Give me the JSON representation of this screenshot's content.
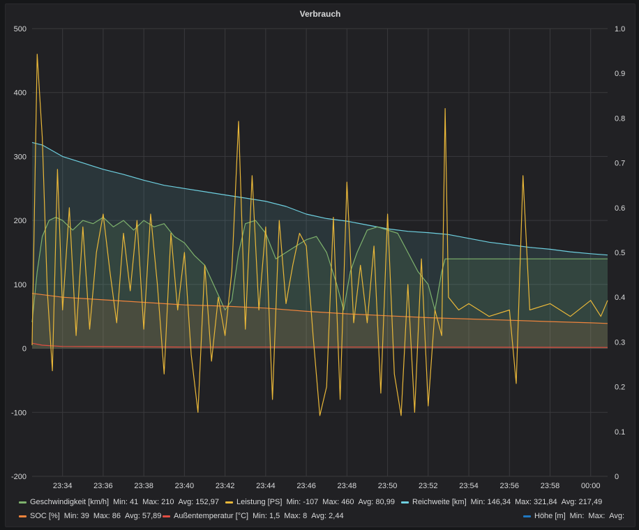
{
  "panel": {
    "title": "Verbrauch"
  },
  "chart_data": {
    "type": "line",
    "title": "Verbrauch",
    "x_tick_labels": [
      "23:34",
      "23:36",
      "23:38",
      "23:40",
      "23:42",
      "23:44",
      "23:46",
      "23:48",
      "23:50",
      "23:52",
      "23:54",
      "23:56",
      "23:58",
      "00:00"
    ],
    "x_range_minutes": [
      "23:32:30",
      "00:00:50"
    ],
    "y_left": {
      "range": [
        -200,
        500
      ],
      "ticks": [
        "500",
        "400",
        "300",
        "200",
        "100",
        "0",
        "-100",
        "-200"
      ]
    },
    "y_right": {
      "range": [
        0,
        1.0
      ],
      "ticks": [
        "1.0",
        "0.9",
        "0.8",
        "0.7",
        "0.6",
        "0.5",
        "0.4",
        "0.3",
        "0.2",
        "0.1",
        "0"
      ]
    },
    "grid": true,
    "legend_placement": "bottom",
    "series": [
      {
        "name": "Geschwindigkeit [km/h]",
        "color": "#7eb26d",
        "fill": true,
        "stats": {
          "min": "41",
          "max": "210",
          "avg": "152,97"
        },
        "points": [
          [
            "23:32:30",
            41
          ],
          [
            "23:32:45",
            120
          ],
          [
            "23:33:00",
            175
          ],
          [
            "23:33:20",
            200
          ],
          [
            "23:33:40",
            205
          ],
          [
            "23:34:00",
            200
          ],
          [
            "23:34:30",
            185
          ],
          [
            "23:35:00",
            200
          ],
          [
            "23:35:30",
            195
          ],
          [
            "23:36:00",
            205
          ],
          [
            "23:36:30",
            190
          ],
          [
            "23:37:00",
            200
          ],
          [
            "23:37:30",
            185
          ],
          [
            "23:38:00",
            200
          ],
          [
            "23:38:30",
            190
          ],
          [
            "23:39:00",
            195
          ],
          [
            "23:39:30",
            175
          ],
          [
            "23:40:00",
            165
          ],
          [
            "23:40:30",
            145
          ],
          [
            "23:41:00",
            130
          ],
          [
            "23:41:30",
            95
          ],
          [
            "23:42:00",
            60
          ],
          [
            "23:42:20",
            75
          ],
          [
            "23:42:40",
            150
          ],
          [
            "23:43:00",
            195
          ],
          [
            "23:43:30",
            200
          ],
          [
            "23:44:00",
            180
          ],
          [
            "23:44:30",
            140
          ],
          [
            "23:45:00",
            150
          ],
          [
            "23:45:30",
            160
          ],
          [
            "23:46:00",
            170
          ],
          [
            "23:46:30",
            175
          ],
          [
            "23:47:00",
            150
          ],
          [
            "23:47:30",
            100
          ],
          [
            "23:47:50",
            60
          ],
          [
            "23:48:10",
            120
          ],
          [
            "23:48:30",
            150
          ],
          [
            "23:49:00",
            185
          ],
          [
            "23:49:30",
            190
          ],
          [
            "23:50:00",
            185
          ],
          [
            "23:50:30",
            180
          ],
          [
            "23:51:00",
            150
          ],
          [
            "23:51:30",
            120
          ],
          [
            "23:52:00",
            100
          ],
          [
            "23:52:20",
            60
          ],
          [
            "23:52:40",
            120
          ],
          [
            "23:52:50",
            140
          ],
          [
            "23:55:00",
            140
          ],
          [
            "23:58:00",
            140
          ],
          [
            "00:00:50",
            140
          ]
        ]
      },
      {
        "name": "Leistung [PS]",
        "color": "#eab839",
        "fill": false,
        "stats": {
          "min": "-107",
          "max": "460",
          "avg": "80,99"
        },
        "points": [
          [
            "23:32:30",
            5
          ],
          [
            "23:32:45",
            460
          ],
          [
            "23:33:00",
            330
          ],
          [
            "23:33:15",
            90
          ],
          [
            "23:33:30",
            -35
          ],
          [
            "23:33:45",
            280
          ],
          [
            "23:34:00",
            60
          ],
          [
            "23:34:20",
            220
          ],
          [
            "23:34:40",
            20
          ],
          [
            "23:35:00",
            190
          ],
          [
            "23:35:20",
            30
          ],
          [
            "23:35:40",
            150
          ],
          [
            "23:36:00",
            210
          ],
          [
            "23:36:20",
            120
          ],
          [
            "23:36:40",
            40
          ],
          [
            "23:37:00",
            180
          ],
          [
            "23:37:20",
            90
          ],
          [
            "23:37:40",
            200
          ],
          [
            "23:38:00",
            30
          ],
          [
            "23:38:20",
            210
          ],
          [
            "23:38:40",
            100
          ],
          [
            "23:39:00",
            -40
          ],
          [
            "23:39:20",
            180
          ],
          [
            "23:39:40",
            60
          ],
          [
            "23:40:00",
            150
          ],
          [
            "23:40:20",
            -10
          ],
          [
            "23:40:40",
            -100
          ],
          [
            "23:41:00",
            130
          ],
          [
            "23:41:20",
            -20
          ],
          [
            "23:41:40",
            80
          ],
          [
            "23:42:00",
            20
          ],
          [
            "23:42:20",
            120
          ],
          [
            "23:42:40",
            355
          ],
          [
            "23:43:00",
            30
          ],
          [
            "23:43:20",
            270
          ],
          [
            "23:43:40",
            60
          ],
          [
            "23:44:00",
            190
          ],
          [
            "23:44:20",
            -80
          ],
          [
            "23:44:40",
            200
          ],
          [
            "23:45:00",
            70
          ],
          [
            "23:45:20",
            130
          ],
          [
            "23:45:40",
            180
          ],
          [
            "23:46:00",
            160
          ],
          [
            "23:46:20",
            20
          ],
          [
            "23:46:40",
            -105
          ],
          [
            "23:47:00",
            -60
          ],
          [
            "23:47:20",
            205
          ],
          [
            "23:47:40",
            -80
          ],
          [
            "23:48:00",
            260
          ],
          [
            "23:48:20",
            40
          ],
          [
            "23:48:40",
            130
          ],
          [
            "23:49:00",
            40
          ],
          [
            "23:49:20",
            160
          ],
          [
            "23:49:40",
            -70
          ],
          [
            "23:50:00",
            210
          ],
          [
            "23:50:20",
            -40
          ],
          [
            "23:50:40",
            -105
          ],
          [
            "23:51:00",
            100
          ],
          [
            "23:51:20",
            -100
          ],
          [
            "23:51:40",
            140
          ],
          [
            "23:52:00",
            -90
          ],
          [
            "23:52:20",
            60
          ],
          [
            "23:52:40",
            20
          ],
          [
            "23:52:50",
            375
          ],
          [
            "23:53:00",
            80
          ],
          [
            "23:53:30",
            60
          ],
          [
            "23:54:00",
            70
          ],
          [
            "23:55:00",
            50
          ],
          [
            "23:56:00",
            60
          ],
          [
            "23:56:20",
            -55
          ],
          [
            "23:56:40",
            270
          ],
          [
            "23:57:00",
            60
          ],
          [
            "23:58:00",
            70
          ],
          [
            "23:59:00",
            50
          ],
          [
            "00:00:00",
            75
          ],
          [
            "00:00:30",
            50
          ],
          [
            "00:00:50",
            75
          ]
        ]
      },
      {
        "name": "Reichweite [km]",
        "color": "#6ed0e0",
        "fill": true,
        "stats": {
          "min": "146,34",
          "max": "321,84",
          "avg": "217,49"
        },
        "points": [
          [
            "23:32:30",
            322
          ],
          [
            "23:33:00",
            318
          ],
          [
            "23:34:00",
            300
          ],
          [
            "23:35:00",
            290
          ],
          [
            "23:36:00",
            280
          ],
          [
            "23:37:00",
            272
          ],
          [
            "23:38:00",
            263
          ],
          [
            "23:39:00",
            255
          ],
          [
            "23:40:00",
            250
          ],
          [
            "23:41:00",
            245
          ],
          [
            "23:42:00",
            240
          ],
          [
            "23:43:00",
            235
          ],
          [
            "23:44:00",
            230
          ],
          [
            "23:45:00",
            222
          ],
          [
            "23:46:00",
            210
          ],
          [
            "23:47:00",
            203
          ],
          [
            "23:48:00",
            199
          ],
          [
            "23:49:00",
            193
          ],
          [
            "23:50:00",
            187
          ],
          [
            "23:51:00",
            183
          ],
          [
            "23:52:00",
            181
          ],
          [
            "23:53:00",
            178
          ],
          [
            "23:54:00",
            172
          ],
          [
            "23:55:00",
            166
          ],
          [
            "23:56:00",
            162
          ],
          [
            "23:57:00",
            158
          ],
          [
            "23:58:00",
            155
          ],
          [
            "23:59:00",
            151
          ],
          [
            "00:00:00",
            148
          ],
          [
            "00:00:50",
            146
          ]
        ]
      },
      {
        "name": "SOC [%]",
        "color": "#ef843c",
        "fill": true,
        "stats": {
          "min": "39",
          "max": "86",
          "avg": "57,89"
        },
        "points": [
          [
            "23:32:30",
            86
          ],
          [
            "23:34:00",
            80
          ],
          [
            "23:36:00",
            76
          ],
          [
            "23:38:00",
            72
          ],
          [
            "23:40:00",
            68
          ],
          [
            "23:42:00",
            66
          ],
          [
            "23:44:00",
            63
          ],
          [
            "23:46:00",
            58
          ],
          [
            "23:48:00",
            54
          ],
          [
            "23:50:00",
            51
          ],
          [
            "23:52:00",
            48
          ],
          [
            "23:54:00",
            46
          ],
          [
            "23:56:00",
            44
          ],
          [
            "23:58:00",
            42
          ],
          [
            "00:00:00",
            40
          ],
          [
            "00:00:50",
            39
          ]
        ]
      },
      {
        "name": "Außentemperatur [°C]",
        "color": "#e24d42",
        "fill": false,
        "stats": {
          "min": "1,5",
          "max": "8",
          "avg": "2,44"
        },
        "points": [
          [
            "23:32:30",
            8
          ],
          [
            "23:33:00",
            5
          ],
          [
            "23:34:00",
            3
          ],
          [
            "23:40:00",
            2
          ],
          [
            "23:50:00",
            2
          ],
          [
            "00:00:50",
            1.5
          ]
        ]
      },
      {
        "name": "Höhe [m]",
        "color": "#1f78c1",
        "fill": false,
        "stats": {
          "min": "",
          "max": "",
          "avg": ""
        },
        "points": []
      }
    ]
  },
  "legend": {
    "min_label": "Min:",
    "max_label": "Max:",
    "avg_label": "Avg:"
  }
}
